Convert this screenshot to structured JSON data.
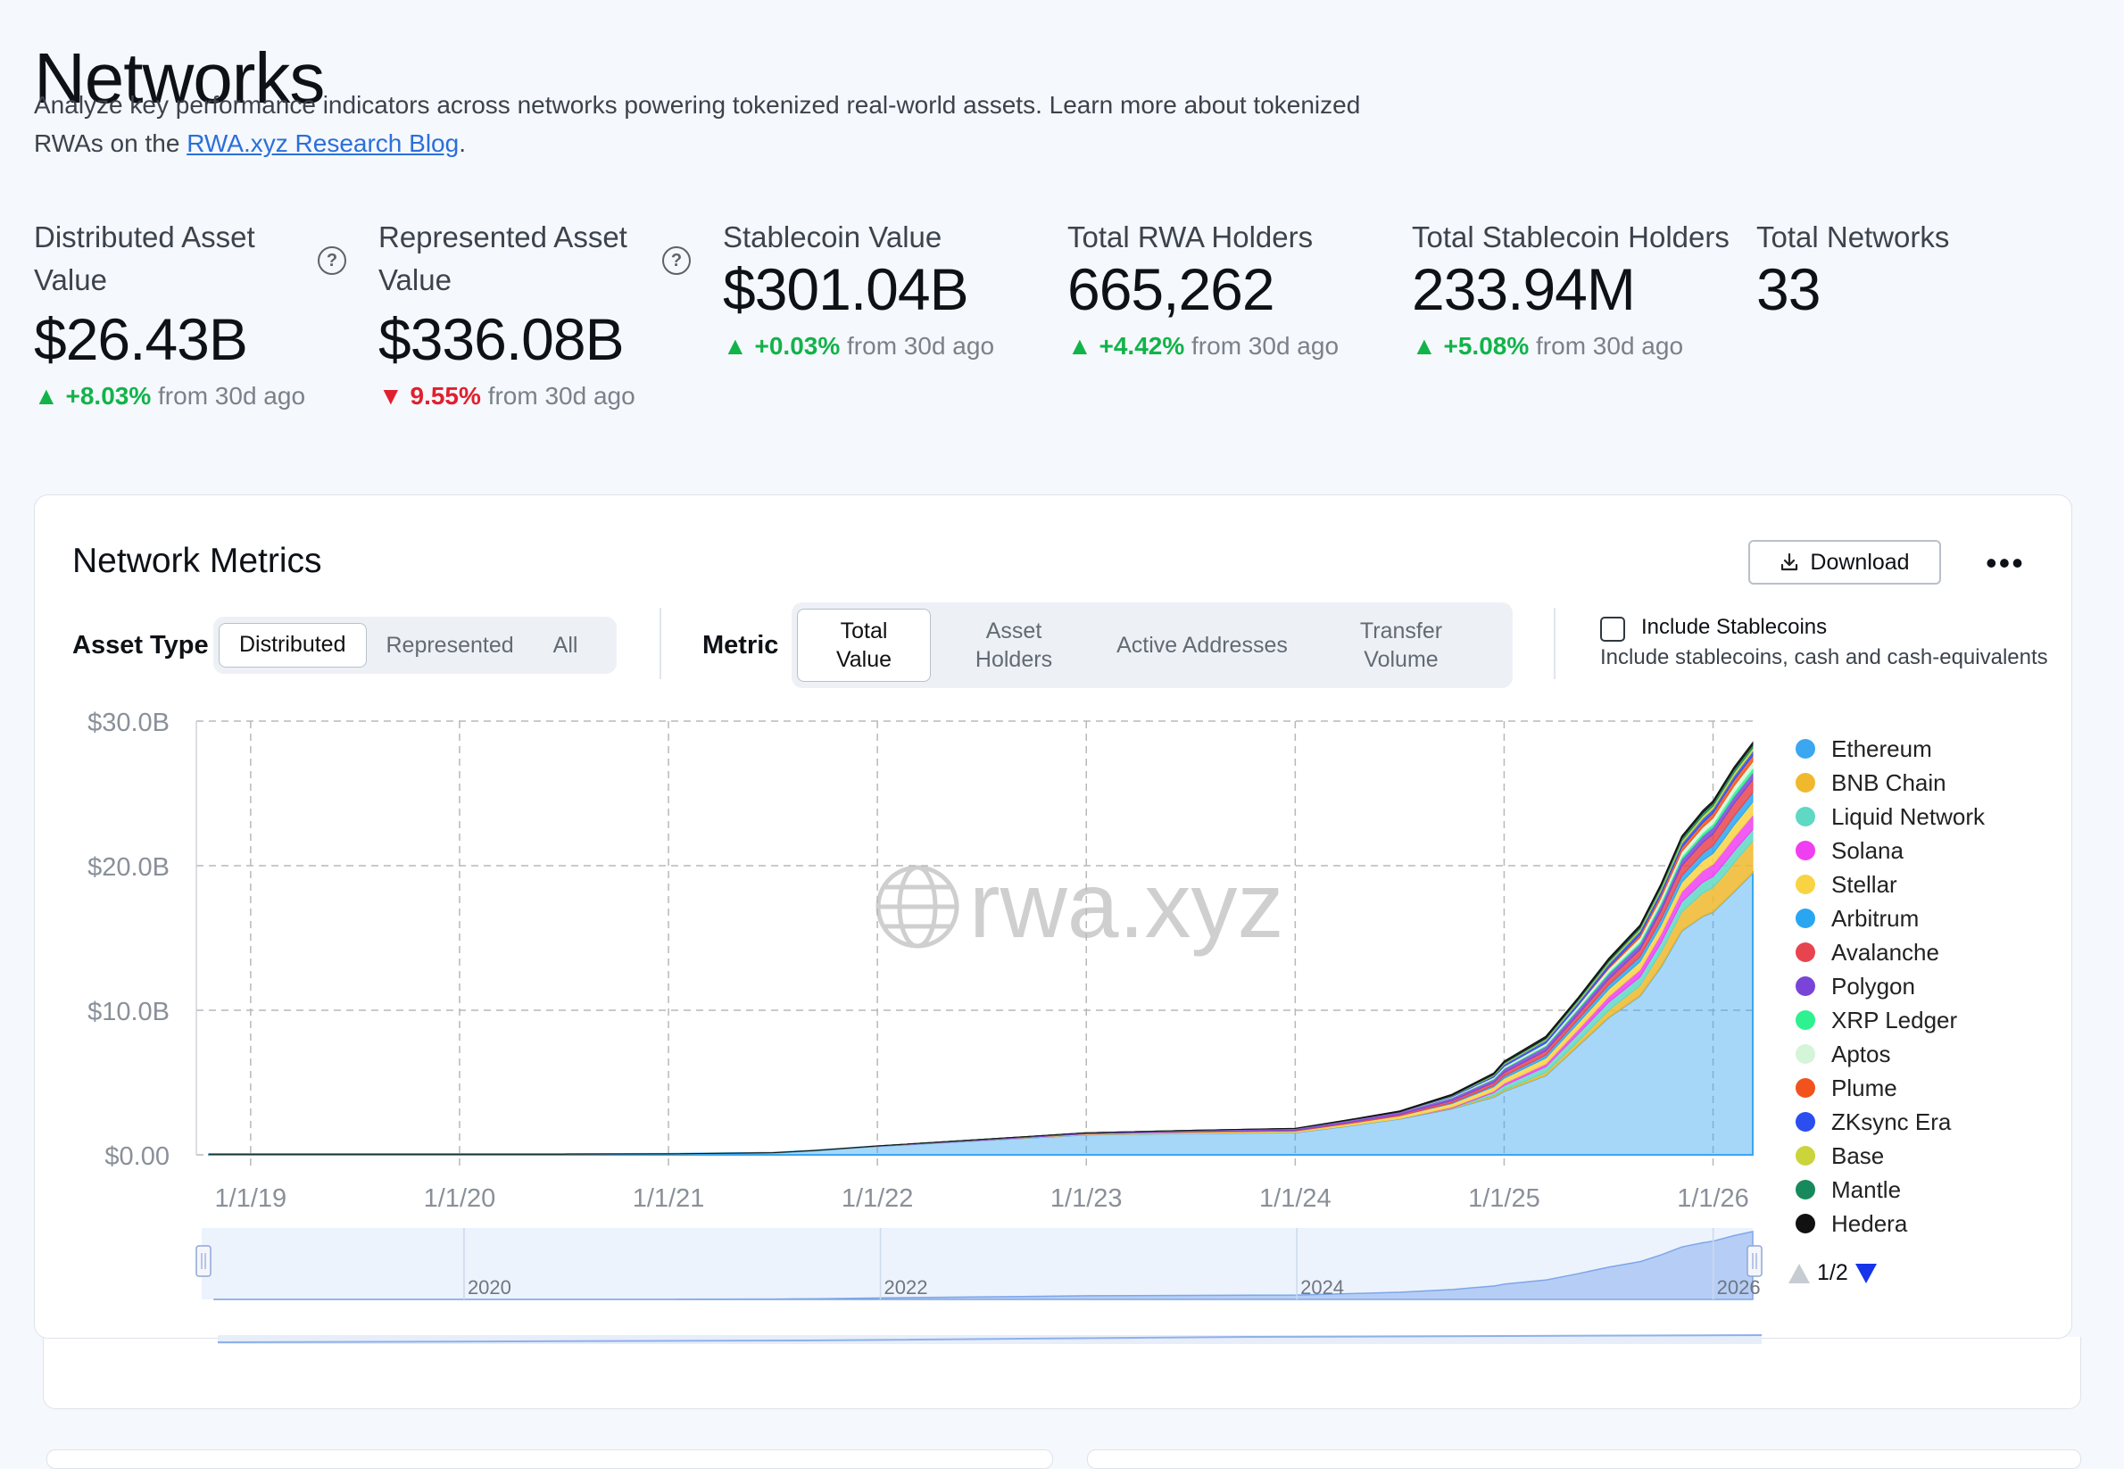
{
  "page": {
    "title": "Networks",
    "subtitle_text": "Analyze key performance indicators across networks powering tokenized real-world assets. Learn more about tokenized RWAs on the ",
    "subtitle_link": "RWA.xyz Research Blog",
    "subtitle_end": "."
  },
  "stats": [
    {
      "label": "Distributed Asset Value",
      "value": "$26.43B",
      "direction": "up",
      "change": "+8.03%",
      "suffix": "from 30d ago",
      "help": true
    },
    {
      "label": "Represented Asset Value",
      "value": "$336.08B",
      "direction": "down",
      "change": "9.55%",
      "suffix": "from 30d ago",
      "help": true
    },
    {
      "label": "Stablecoin Value",
      "value": "$301.04B",
      "direction": "up",
      "change": "+0.03%",
      "suffix": "from 30d ago",
      "help": false
    },
    {
      "label": "Total RWA Holders",
      "value": "665,262",
      "direction": "up",
      "change": "+4.42%",
      "suffix": "from 30d ago",
      "help": false
    },
    {
      "label": "Total Stablecoin Holders",
      "value": "233.94M",
      "direction": "up",
      "change": "+5.08%",
      "suffix": "from 30d ago",
      "help": false
    },
    {
      "label": "Total Networks",
      "value": "33",
      "direction": null,
      "change": "",
      "suffix": "",
      "help": false
    }
  ],
  "panel": {
    "title": "Network Metrics",
    "download_label": "Download",
    "more_label": "•••",
    "asset_type_label": "Asset Type",
    "asset_type_options": [
      "Distributed",
      "Represented",
      "All"
    ],
    "asset_type_selected": "Distributed",
    "metric_label": "Metric",
    "metric_options": [
      "Total Value",
      "Asset Holders",
      "Active Addresses",
      "Transfer Volume"
    ],
    "metric_selected": "Total Value",
    "include_stablecoins_label": "Include Stablecoins",
    "include_stablecoins_desc": "Include stablecoins, cash and cash-equivalents",
    "include_stablecoins_checked": false,
    "pager": "1/2"
  },
  "chart_data": {
    "type": "area",
    "stacked": true,
    "ylabel": "",
    "ylim": [
      0,
      30
    ],
    "y_ticks": [
      "$30.0B",
      "$20.0B",
      "$10.0B",
      "$0.00"
    ],
    "y_tick_values": [
      30,
      20,
      10,
      0
    ],
    "x_tick_labels": [
      "1/1/19",
      "1/1/20",
      "1/1/21",
      "1/1/22",
      "1/1/23",
      "1/1/24",
      "1/1/25",
      "1/1/26"
    ],
    "x_tick_years": [
      2019,
      2020,
      2021,
      2022,
      2023,
      2024,
      2025,
      2026
    ],
    "xlim_years": [
      2018.74,
      2026.19
    ],
    "navigator_labels": [
      "2020",
      "2022",
      "2024",
      "2026"
    ],
    "navigator_years": [
      2020,
      2022,
      2024,
      2026
    ],
    "watermark": "rwa.xyz",
    "grid": true,
    "legend_position": "right",
    "x": [
      2018.8,
      2019.5,
      2020.0,
      2020.5,
      2021.0,
      2021.5,
      2021.7,
      2022.0,
      2022.5,
      2023.0,
      2023.5,
      2024.0,
      2024.25,
      2024.5,
      2024.75,
      2024.95,
      2025.0,
      2025.2,
      2025.35,
      2025.5,
      2025.65,
      2025.75,
      2025.85,
      2025.95,
      2026.0,
      2026.05,
      2026.1,
      2026.19
    ],
    "series": [
      {
        "name": "Ethereum",
        "color": "#3aa7f0",
        "values": [
          0.05,
          0.05,
          0.05,
          0.05,
          0.07,
          0.15,
          0.3,
          0.6,
          1.0,
          1.4,
          1.5,
          1.55,
          2.0,
          2.5,
          3.2,
          4.0,
          4.4,
          5.5,
          7.5,
          9.5,
          11.0,
          13.0,
          15.5,
          16.5,
          16.8,
          17.5,
          18.2,
          19.5
        ]
      },
      {
        "name": "BNB Chain",
        "color": "#f0b92d",
        "values": [
          0,
          0,
          0,
          0,
          0,
          0,
          0,
          0,
          0,
          0,
          0,
          0,
          0,
          0,
          0.05,
          0.1,
          0.1,
          0.2,
          0.3,
          0.5,
          0.7,
          1.0,
          1.3,
          1.6,
          1.7,
          1.8,
          2.0,
          2.2
        ]
      },
      {
        "name": "Liquid Network",
        "color": "#5fd8c4",
        "values": [
          0,
          0,
          0,
          0,
          0,
          0,
          0,
          0,
          0,
          0,
          0,
          0,
          0,
          0,
          0,
          0.2,
          0.3,
          0.4,
          0.5,
          0.55,
          0.6,
          0.65,
          0.7,
          0.75,
          0.75,
          0.8,
          0.8,
          0.8
        ]
      },
      {
        "name": "Solana",
        "color": "#ef3ff1",
        "values": [
          0,
          0,
          0,
          0,
          0,
          0,
          0,
          0,
          0,
          0,
          0,
          0,
          0,
          0,
          0.05,
          0.1,
          0.15,
          0.2,
          0.3,
          0.4,
          0.5,
          0.6,
          0.7,
          0.8,
          0.85,
          0.9,
          0.95,
          1.0
        ]
      },
      {
        "name": "Stellar",
        "color": "#f8d443",
        "values": [
          0,
          0,
          0,
          0,
          0,
          0,
          0,
          0,
          0.02,
          0.05,
          0.08,
          0.1,
          0.15,
          0.2,
          0.25,
          0.3,
          0.35,
          0.4,
          0.45,
          0.5,
          0.55,
          0.6,
          0.65,
          0.7,
          0.75,
          0.8,
          0.85,
          0.9
        ]
      },
      {
        "name": "Arbitrum",
        "color": "#29a6f2",
        "values": [
          0,
          0,
          0,
          0,
          0,
          0,
          0,
          0,
          0,
          0,
          0,
          0,
          0,
          0,
          0.05,
          0.1,
          0.15,
          0.2,
          0.25,
          0.3,
          0.35,
          0.4,
          0.45,
          0.5,
          0.55,
          0.6,
          0.62,
          0.65
        ]
      },
      {
        "name": "Avalanche",
        "color": "#e8444f",
        "values": [
          0,
          0,
          0,
          0,
          0,
          0,
          0,
          0,
          0,
          0,
          0.02,
          0.05,
          0.08,
          0.1,
          0.15,
          0.2,
          0.25,
          0.3,
          0.35,
          0.4,
          0.5,
          0.6,
          0.7,
          0.75,
          0.8,
          0.85,
          0.88,
          0.9
        ]
      },
      {
        "name": "Polygon",
        "color": "#7a44d8",
        "values": [
          0,
          0,
          0,
          0,
          0,
          0,
          0,
          0.02,
          0.05,
          0.08,
          0.1,
          0.12,
          0.15,
          0.18,
          0.2,
          0.22,
          0.25,
          0.3,
          0.32,
          0.35,
          0.38,
          0.4,
          0.42,
          0.45,
          0.45,
          0.46,
          0.47,
          0.48
        ]
      },
      {
        "name": "XRP Ledger",
        "color": "#2ef18f",
        "values": [
          0,
          0,
          0,
          0,
          0,
          0,
          0,
          0,
          0,
          0,
          0,
          0,
          0,
          0,
          0.02,
          0.05,
          0.05,
          0.08,
          0.1,
          0.12,
          0.15,
          0.18,
          0.2,
          0.22,
          0.25,
          0.28,
          0.3,
          0.32
        ]
      },
      {
        "name": "Aptos",
        "color": "#d4f5d8",
        "values": [
          0,
          0,
          0,
          0,
          0,
          0,
          0,
          0,
          0,
          0,
          0,
          0,
          0,
          0,
          0.05,
          0.1,
          0.12,
          0.15,
          0.2,
          0.25,
          0.3,
          0.32,
          0.35,
          0.38,
          0.4,
          0.42,
          0.44,
          0.45
        ]
      },
      {
        "name": "Plume",
        "color": "#f2521c",
        "values": [
          0,
          0,
          0,
          0,
          0,
          0,
          0,
          0,
          0,
          0,
          0,
          0,
          0,
          0,
          0,
          0,
          0,
          0,
          0,
          0.1,
          0.2,
          0.25,
          0.3,
          0.32,
          0.35,
          0.38,
          0.4,
          0.42
        ]
      },
      {
        "name": "ZKsync Era",
        "color": "#2b4ef0",
        "values": [
          0,
          0,
          0,
          0,
          0,
          0,
          0,
          0,
          0,
          0,
          0,
          0,
          0,
          0,
          0.05,
          0.1,
          0.15,
          0.2,
          0.22,
          0.24,
          0.25,
          0.26,
          0.27,
          0.28,
          0.28,
          0.29,
          0.3,
          0.3
        ]
      },
      {
        "name": "Base",
        "color": "#cbd43a",
        "values": [
          0,
          0,
          0,
          0,
          0,
          0,
          0,
          0,
          0,
          0,
          0,
          0,
          0,
          0,
          0.02,
          0.05,
          0.06,
          0.08,
          0.1,
          0.12,
          0.14,
          0.16,
          0.18,
          0.2,
          0.2,
          0.21,
          0.22,
          0.22
        ]
      },
      {
        "name": "Mantle",
        "color": "#178a5c",
        "values": [
          0,
          0,
          0,
          0,
          0,
          0,
          0,
          0,
          0,
          0,
          0,
          0,
          0,
          0,
          0.02,
          0.05,
          0.06,
          0.08,
          0.1,
          0.12,
          0.14,
          0.16,
          0.18,
          0.2,
          0.2,
          0.21,
          0.22,
          0.22
        ]
      },
      {
        "name": "Hedera",
        "color": "#111111",
        "values": [
          0,
          0,
          0,
          0,
          0,
          0,
          0,
          0,
          0,
          0,
          0,
          0.02,
          0.04,
          0.06,
          0.08,
          0.1,
          0.1,
          0.12,
          0.12,
          0.14,
          0.14,
          0.15,
          0.15,
          0.16,
          0.16,
          0.16,
          0.17,
          0.17
        ]
      }
    ]
  }
}
